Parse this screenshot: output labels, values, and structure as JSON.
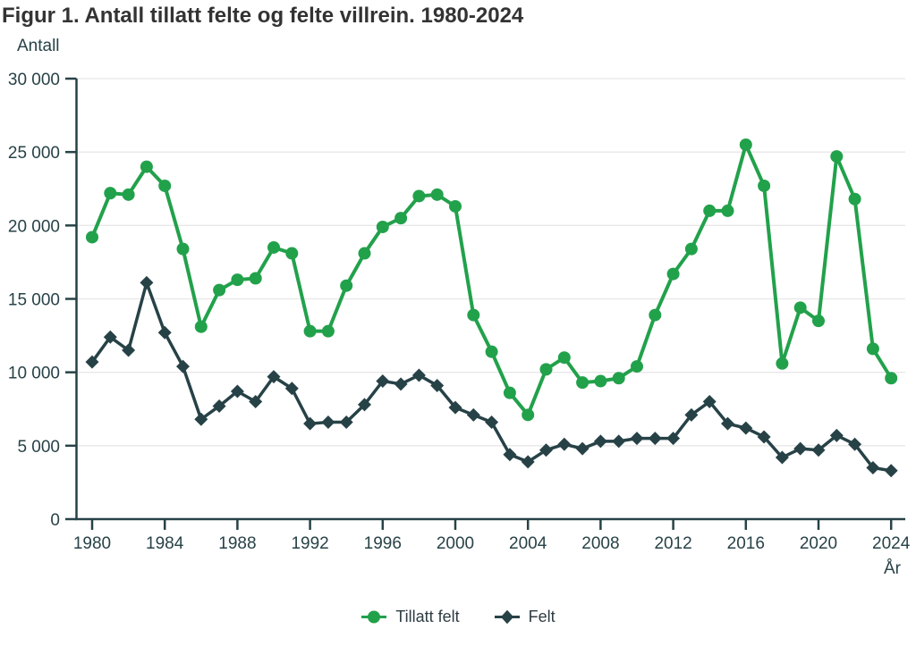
{
  "chart_data": {
    "type": "line",
    "title": "Figur 1. Antall tillatt felte og felte villrein. 1980-2024",
    "ylabel": "Antall",
    "xlabel": "År",
    "ylim": [
      0,
      30000
    ],
    "grid": "horizontal",
    "legend_position": "bottom-center",
    "yticks": [
      [
        0,
        "0"
      ],
      [
        5000,
        "5 000"
      ],
      [
        10000,
        "10 000"
      ],
      [
        15000,
        "15 000"
      ],
      [
        20000,
        "20 000"
      ],
      [
        25000,
        "25 000"
      ],
      [
        30000,
        "30 000"
      ]
    ],
    "xticks": [
      1980,
      1984,
      1988,
      1992,
      1996,
      2000,
      2004,
      2008,
      2012,
      2016,
      2020,
      2024
    ],
    "x": [
      1980,
      1981,
      1982,
      1983,
      1984,
      1985,
      1986,
      1987,
      1988,
      1989,
      1990,
      1991,
      1992,
      1993,
      1994,
      1995,
      1996,
      1997,
      1998,
      1999,
      2000,
      2001,
      2002,
      2003,
      2004,
      2005,
      2006,
      2007,
      2008,
      2009,
      2010,
      2011,
      2012,
      2013,
      2014,
      2015,
      2016,
      2017,
      2018,
      2019,
      2020,
      2021,
      2022,
      2023,
      2024
    ],
    "series": [
      {
        "name": "Tillatt felt",
        "marker": "circle",
        "color": "#22a14b",
        "values": [
          19200,
          22200,
          22100,
          24000,
          22700,
          18400,
          13100,
          15600,
          16300,
          16400,
          18500,
          18100,
          12800,
          12800,
          15900,
          18100,
          19900,
          20500,
          22000,
          22100,
          21300,
          13900,
          11400,
          8600,
          7100,
          10200,
          11000,
          9300,
          9400,
          9600,
          10400,
          13900,
          16700,
          18400,
          21000,
          21000,
          25500,
          22700,
          10600,
          14400,
          13500,
          24700,
          21800,
          11600,
          9600
        ]
      },
      {
        "name": "Felt",
        "marker": "diamond",
        "color": "#274247",
        "values": [
          10700,
          12400,
          11500,
          16100,
          12700,
          10400,
          6800,
          7700,
          8700,
          8000,
          9700,
          8900,
          6500,
          6600,
          6600,
          7800,
          9400,
          9200,
          9800,
          9100,
          7600,
          7100,
          6600,
          4400,
          3900,
          4700,
          5100,
          4800,
          5300,
          5300,
          5500,
          5500,
          5500,
          7100,
          8000,
          6500,
          6200,
          5600,
          4200,
          4800,
          4700,
          5700,
          5100,
          3500,
          3300
        ]
      }
    ]
  }
}
